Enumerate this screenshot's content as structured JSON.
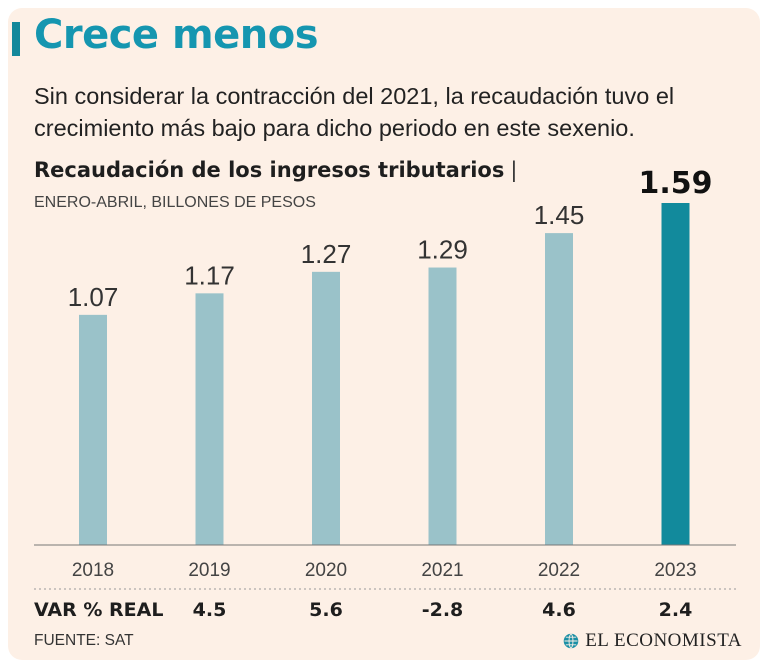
{
  "header": {
    "headline": "Crece menos",
    "subtitle": "Sin considerar la contracción del 2021, la recaudación tuvo el crecimiento más bajo para dicho periodo en este sexenio."
  },
  "chart_data": {
    "type": "bar",
    "title": "Recaudación de los ingresos tributarios",
    "title_separator": "|",
    "subtitle": "ENERO-ABRIL, BILLONES DE PESOS",
    "categories": [
      "2018",
      "2019",
      "2020",
      "2021",
      "2022",
      "2023"
    ],
    "values": [
      1.07,
      1.17,
      1.27,
      1.29,
      1.45,
      1.59
    ],
    "value_labels": [
      "1.07",
      "1.17",
      "1.27",
      "1.29",
      "1.45",
      "1.59"
    ],
    "ylim": [
      0,
      1.59
    ],
    "grid": false,
    "highlight_index": 5,
    "colors": {
      "bar": "#9ac2c9",
      "highlight": "#128a9c"
    },
    "variation": {
      "label": "VAR % REAL",
      "values": [
        "4.5",
        "5.6",
        "-2.8",
        "4.6",
        "2.4"
      ]
    }
  },
  "footer": {
    "source": "FUENTE: SAT",
    "brand": "EL ECONOMISTA",
    "brand_icon": "globe-icon"
  },
  "colors": {
    "background": "#fdf0e6",
    "accent": "#13889b",
    "headline": "#1596b0"
  }
}
